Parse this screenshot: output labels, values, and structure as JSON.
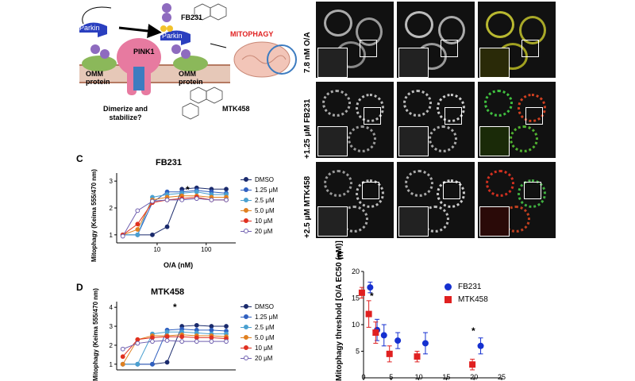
{
  "panelA": {
    "labels": {
      "parkin_top": "Parkin",
      "parkin_mid": "Parkin",
      "pink1": "PINK1",
      "omm_left": "OMM\nprotein",
      "omm_right": "OMM\nprotein",
      "fb231": "FB231",
      "mtk458": "MTK458",
      "mitophagy": "MITOPHAGY",
      "dimerize": "Dimerize and\nstabilize?",
      "ub": "Ub",
      "p": "P"
    },
    "colors": {
      "parkin": "#2a3fbf",
      "pink1": "#e77aa0",
      "ub": "#8e6bbf",
      "omm": "#8bb85a",
      "mitophagy_text": "#e02020",
      "p": "#f2c22b"
    }
  },
  "panelB": {
    "row_labels": [
      "7.8 nM O/A",
      "+1.25 μM FB231",
      "+2.5 μM MTK458"
    ]
  },
  "panelC": {
    "letter": "C",
    "title": "FB231",
    "ylabel": "Mitophagy (Keima 555/470 nm)",
    "xlabel": "O/A (nM)",
    "yticks": [
      "1",
      "2",
      "3"
    ],
    "xticks": [
      "10",
      "100"
    ],
    "legend": [
      "DMSO",
      "1.25 μM",
      "2.5 μM",
      "5.0 μM",
      "10 μM",
      "20 μM"
    ],
    "star": "*"
  },
  "panelD": {
    "letter": "D",
    "title": "MTK458",
    "ylabel": "Mitophagy (Keima 555/470 nm)",
    "yticks": [
      "1",
      "2",
      "3",
      "4"
    ],
    "legend": [
      "DMSO",
      "1.25 μM",
      "2.5 μM",
      "5.0 μM",
      "10 μM",
      "20 μM"
    ],
    "star": "*"
  },
  "panelE": {
    "letter": "E",
    "ylabel": "Mitophagy threshold [O/A EC50 (nM)]",
    "yticks": [
      "5",
      "10",
      "15",
      "20"
    ],
    "xticks": [
      "0",
      "5",
      "10",
      "15",
      "20",
      "25"
    ],
    "legend": [
      "FB231",
      "MTK458"
    ],
    "stars": [
      "*",
      "*"
    ]
  },
  "chart_data": [
    {
      "type": "scatter",
      "title": "FB231",
      "xlabel": "O/A (nM)",
      "ylabel": "Mitophagy (Keima 555/470 nm)",
      "xscale": "log",
      "ylim": [
        0.7,
        3.3
      ],
      "series": [
        {
          "name": "DMSO",
          "color": "#1a2a6c",
          "x": [
            2,
            4,
            8,
            16,
            32,
            64,
            128,
            256
          ],
          "y": [
            1.0,
            1.0,
            1.0,
            1.3,
            2.7,
            2.75,
            2.7,
            2.7
          ]
        },
        {
          "name": "1.25 μM",
          "color": "#3060c0",
          "x": [
            2,
            4,
            8,
            16,
            32,
            64,
            128,
            256
          ],
          "y": [
            1.0,
            1.0,
            2.2,
            2.6,
            2.6,
            2.65,
            2.6,
            2.55
          ]
        },
        {
          "name": "2.5 μM",
          "color": "#4aa0d0",
          "x": [
            2,
            4,
            8,
            16,
            32,
            64,
            128,
            256
          ],
          "y": [
            1.0,
            1.0,
            2.4,
            2.5,
            2.55,
            2.6,
            2.5,
            2.5
          ]
        },
        {
          "name": "5.0 μM",
          "color": "#e08020",
          "x": [
            2,
            4,
            8,
            16,
            32,
            64,
            128,
            256
          ],
          "y": [
            1.0,
            1.2,
            2.3,
            2.4,
            2.45,
            2.45,
            2.4,
            2.4
          ]
        },
        {
          "name": "10 μM",
          "color": "#e03020",
          "x": [
            2,
            4,
            8,
            16,
            32,
            64,
            128,
            256
          ],
          "y": [
            1.0,
            1.4,
            2.2,
            2.3,
            2.35,
            2.4,
            2.3,
            2.3
          ]
        },
        {
          "name": "20 μM",
          "color": "#7060b0",
          "x": [
            2,
            4,
            8,
            16,
            32,
            64,
            128,
            256
          ],
          "y": [
            0.95,
            1.9,
            2.25,
            2.3,
            2.3,
            2.35,
            2.3,
            2.3
          ]
        }
      ]
    },
    {
      "type": "scatter",
      "title": "MTK458",
      "ylabel": "Mitophagy (Keima 555/470 nm)",
      "xscale": "log",
      "ylim": [
        0.7,
        4.3
      ],
      "series": [
        {
          "name": "DMSO",
          "color": "#1a2a6c",
          "x": [
            2,
            4,
            8,
            16,
            32,
            64,
            128,
            256
          ],
          "y": [
            1.0,
            1.0,
            1.0,
            1.1,
            3.0,
            3.05,
            3.0,
            3.0
          ]
        },
        {
          "name": "1.25 μM",
          "color": "#3060c0",
          "x": [
            2,
            4,
            8,
            16,
            32,
            64,
            128,
            256
          ],
          "y": [
            1.0,
            1.0,
            1.0,
            2.8,
            2.85,
            2.8,
            2.8,
            2.75
          ]
        },
        {
          "name": "2.5 μM",
          "color": "#4aa0d0",
          "x": [
            2,
            4,
            8,
            16,
            32,
            64,
            128,
            256
          ],
          "y": [
            1.0,
            1.0,
            2.6,
            2.7,
            2.7,
            2.65,
            2.6,
            2.6
          ]
        },
        {
          "name": "5.0 μM",
          "color": "#e08020",
          "x": [
            2,
            4,
            8,
            16,
            32,
            64,
            128,
            256
          ],
          "y": [
            1.0,
            2.3,
            2.5,
            2.5,
            2.55,
            2.5,
            2.5,
            2.45
          ]
        },
        {
          "name": "10 μM",
          "color": "#e03020",
          "x": [
            2,
            4,
            8,
            16,
            32,
            64,
            128,
            256
          ],
          "y": [
            1.4,
            2.3,
            2.4,
            2.45,
            2.45,
            2.4,
            2.4,
            2.35
          ]
        },
        {
          "name": "20 μM",
          "color": "#7060b0",
          "x": [
            2,
            4,
            8,
            16,
            32,
            64,
            128,
            256
          ],
          "y": [
            1.8,
            2.1,
            2.2,
            2.25,
            2.2,
            2.2,
            2.2,
            2.2
          ]
        }
      ]
    },
    {
      "type": "scatter",
      "ylabel": "Mitophagy threshold [O/A EC50 (nM)]",
      "xlim": [
        0,
        25
      ],
      "ylim": [
        0,
        20
      ],
      "series": [
        {
          "name": "FB231",
          "color": "#1530d0",
          "marker": "circle",
          "x": [
            0,
            1.25,
            2.5,
            5,
            10,
            20
          ],
          "y": [
            17,
            9,
            8,
            7,
            6.5,
            6
          ],
          "err": [
            1,
            2,
            2,
            1.5,
            2,
            1.5
          ]
        },
        {
          "name": "MTK458",
          "color": "#e02020",
          "marker": "square",
          "x": [
            0,
            1.25,
            2.5,
            5,
            10,
            20
          ],
          "y": [
            16,
            12,
            8.5,
            4.5,
            4,
            2.5
          ],
          "err": [
            1,
            2.5,
            2,
            1.5,
            1,
            1
          ]
        }
      ]
    }
  ]
}
